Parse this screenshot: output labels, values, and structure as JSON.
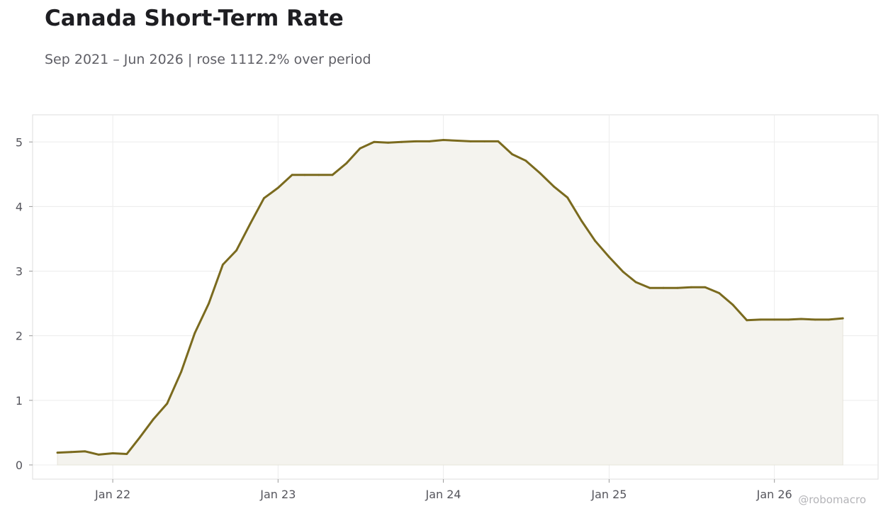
{
  "chart_data": {
    "type": "area",
    "title": "Canada Short-Term Rate",
    "subtitle": "Sep 2021 – Jun 2026 | rose 1112.2% over period",
    "xlabel": "",
    "ylabel": "",
    "ylim": [
      -0.22,
      5.42
    ],
    "y_ticks": [
      0,
      1,
      2,
      3,
      4,
      5
    ],
    "x_ticks": [
      {
        "date": "2022-01-01",
        "label": "Jan 22"
      },
      {
        "date": "2023-01-01",
        "label": "Jan 23"
      },
      {
        "date": "2024-01-01",
        "label": "Jan 24"
      },
      {
        "date": "2025-01-01",
        "label": "Jan 25"
      },
      {
        "date": "2026-01-01",
        "label": "Jan 26"
      }
    ],
    "xlim": [
      "2021-07-08",
      "2026-08-18"
    ],
    "grid": true,
    "legend": "none",
    "line_color": "#7a6a1e",
    "fill_color": "#f4f3ee",
    "series": [
      {
        "x": [
          "2021-09-01",
          "2021-10-01",
          "2021-11-01",
          "2021-12-01",
          "2022-01-01",
          "2022-02-01",
          "2022-03-01",
          "2022-04-01",
          "2022-05-01",
          "2022-06-01",
          "2022-07-01",
          "2022-08-01",
          "2022-09-01",
          "2022-10-01",
          "2022-11-01",
          "2022-12-01",
          "2023-01-01",
          "2023-02-01",
          "2023-03-01",
          "2023-04-01",
          "2023-05-01",
          "2023-06-01",
          "2023-07-01",
          "2023-08-01",
          "2023-09-01",
          "2023-10-01",
          "2023-11-01",
          "2023-12-01",
          "2024-01-01",
          "2024-02-01",
          "2024-03-01",
          "2024-04-01",
          "2024-05-01",
          "2024-06-01",
          "2024-07-01",
          "2024-08-01",
          "2024-09-01",
          "2024-10-01",
          "2024-11-01",
          "2024-12-01",
          "2025-01-01",
          "2025-02-01",
          "2025-03-01",
          "2025-04-01",
          "2025-05-01",
          "2025-06-01",
          "2025-07-01",
          "2025-08-01",
          "2025-09-01",
          "2025-10-01",
          "2025-11-01",
          "2025-12-01",
          "2026-01-01",
          "2026-02-01",
          "2026-03-01",
          "2026-04-01",
          "2026-05-01",
          "2026-06-01"
        ],
        "values": [
          0.19,
          0.2,
          0.21,
          0.16,
          0.18,
          0.17,
          0.42,
          0.71,
          0.95,
          1.44,
          2.04,
          2.5,
          3.1,
          3.32,
          3.74,
          4.13,
          4.29,
          4.49,
          4.49,
          4.49,
          4.49,
          4.67,
          4.9,
          5.0,
          4.99,
          5.0,
          5.01,
          5.01,
          5.03,
          5.02,
          5.01,
          5.01,
          5.01,
          4.81,
          4.71,
          4.52,
          4.31,
          4.14,
          3.78,
          3.47,
          3.22,
          2.99,
          2.83,
          2.74,
          2.74,
          2.74,
          2.75,
          2.75,
          2.66,
          2.48,
          2.24,
          2.25,
          2.25,
          2.25,
          2.26,
          2.25,
          2.25,
          2.27
        ]
      }
    ],
    "watermark": "@robomacro"
  }
}
